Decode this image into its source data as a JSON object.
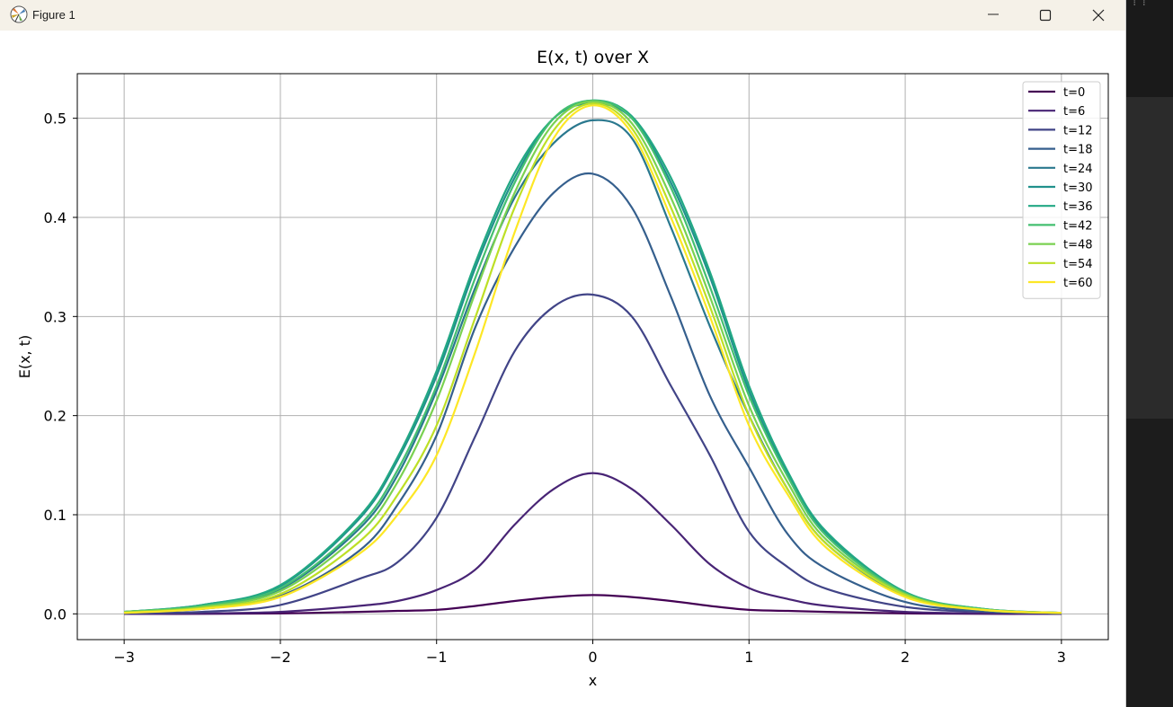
{
  "window": {
    "title": "Figure 1"
  },
  "chart_data": {
    "type": "line",
    "title": "E(x, t) over X",
    "xlabel": "x",
    "ylabel": "E(x, t)",
    "xlim": [
      -3.3,
      3.3
    ],
    "ylim": [
      -0.026,
      0.545
    ],
    "xticks": [
      -3,
      -2,
      -1,
      0,
      1,
      2,
      3
    ],
    "yticks": [
      0.0,
      0.1,
      0.2,
      0.3,
      0.4,
      0.5
    ],
    "x_tick_labels": [
      "−3",
      "−2",
      "−1",
      "0",
      "1",
      "2",
      "3"
    ],
    "y_tick_labels": [
      "0.0",
      "0.1",
      "0.2",
      "0.3",
      "0.4",
      "0.5"
    ],
    "grid": true,
    "legend_position": "top-right",
    "x": [
      -3.0,
      -2.5,
      -2.0,
      -1.5,
      -1.25,
      -1.0,
      -0.75,
      -0.5,
      -0.25,
      0.0,
      0.25,
      0.5,
      0.75,
      1.0,
      1.25,
      1.5,
      2.0,
      2.5,
      3.0
    ],
    "series": [
      {
        "name": "t=0",
        "color": "#440154",
        "values": [
          0.0,
          0.0,
          0.0005,
          0.002,
          0.003,
          0.004,
          0.008,
          0.013,
          0.017,
          0.019,
          0.017,
          0.013,
          0.008,
          0.004,
          0.003,
          0.002,
          0.0005,
          0.0,
          0.0
        ]
      },
      {
        "name": "t=6",
        "color": "#482475",
        "values": [
          0.0,
          0.0005,
          0.002,
          0.008,
          0.013,
          0.024,
          0.045,
          0.09,
          0.126,
          0.142,
          0.126,
          0.09,
          0.05,
          0.026,
          0.015,
          0.008,
          0.002,
          0.0005,
          0.0
        ]
      },
      {
        "name": "t=12",
        "color": "#414487",
        "values": [
          0.0005,
          0.002,
          0.009,
          0.035,
          0.052,
          0.097,
          0.18,
          0.265,
          0.31,
          0.322,
          0.3,
          0.23,
          0.16,
          0.083,
          0.047,
          0.025,
          0.007,
          0.002,
          0.0005
        ]
      },
      {
        "name": "t=18",
        "color": "#355f8d",
        "values": [
          0.001,
          0.005,
          0.018,
          0.063,
          0.11,
          0.18,
          0.29,
          0.37,
          0.425,
          0.444,
          0.41,
          0.32,
          0.22,
          0.148,
          0.08,
          0.045,
          0.012,
          0.003,
          0.001
        ]
      },
      {
        "name": "t=24",
        "color": "#2a788e",
        "values": [
          0.002,
          0.008,
          0.025,
          0.085,
          0.14,
          0.225,
          0.33,
          0.42,
          0.475,
          0.498,
          0.48,
          0.39,
          0.29,
          0.2,
          0.125,
          0.07,
          0.018,
          0.004,
          0.001
        ]
      },
      {
        "name": "t=30",
        "color": "#21918c",
        "values": [
          0.002,
          0.009,
          0.028,
          0.095,
          0.155,
          0.24,
          0.35,
          0.44,
          0.5,
          0.515,
          0.5,
          0.435,
          0.34,
          0.225,
          0.14,
          0.08,
          0.021,
          0.005,
          0.001
        ]
      },
      {
        "name": "t=36",
        "color": "#22a884",
        "values": [
          0.002,
          0.009,
          0.029,
          0.097,
          0.158,
          0.245,
          0.355,
          0.445,
          0.5,
          0.518,
          0.502,
          0.44,
          0.345,
          0.23,
          0.143,
          0.082,
          0.022,
          0.005,
          0.001
        ]
      },
      {
        "name": "t=42",
        "color": "#44bf70",
        "values": [
          0.002,
          0.008,
          0.026,
          0.088,
          0.145,
          0.23,
          0.34,
          0.435,
          0.5,
          0.518,
          0.5,
          0.43,
          0.33,
          0.22,
          0.138,
          0.078,
          0.021,
          0.005,
          0.001
        ]
      },
      {
        "name": "t=48",
        "color": "#7ad151",
        "values": [
          0.002,
          0.007,
          0.023,
          0.08,
          0.133,
          0.215,
          0.325,
          0.425,
          0.495,
          0.517,
          0.495,
          0.42,
          0.32,
          0.21,
          0.132,
          0.074,
          0.02,
          0.004,
          0.001
        ]
      },
      {
        "name": "t=54",
        "color": "#bddf26",
        "values": [
          0.001,
          0.006,
          0.02,
          0.072,
          0.12,
          0.19,
          0.3,
          0.41,
          0.488,
          0.515,
          0.49,
          0.41,
          0.31,
          0.2,
          0.125,
          0.07,
          0.019,
          0.004,
          0.001
        ]
      },
      {
        "name": "t=60",
        "color": "#fde725",
        "values": [
          0.001,
          0.005,
          0.017,
          0.06,
          0.1,
          0.16,
          0.265,
          0.385,
          0.48,
          0.513,
          0.485,
          0.4,
          0.3,
          0.19,
          0.12,
          0.066,
          0.017,
          0.004,
          0.001
        ]
      }
    ]
  }
}
